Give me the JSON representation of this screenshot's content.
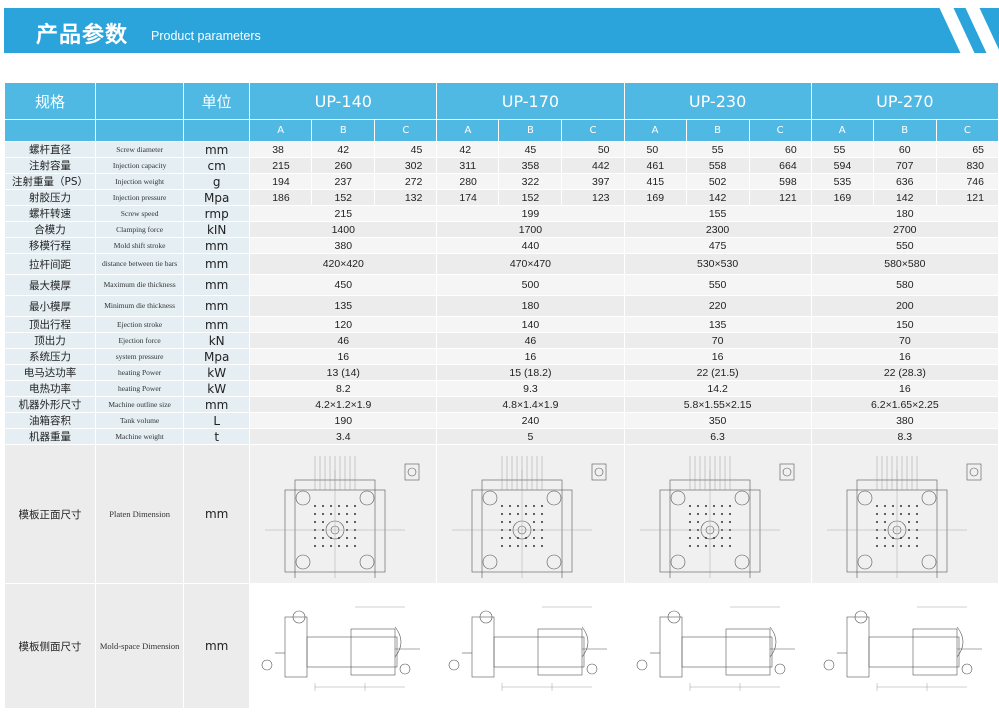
{
  "header": {
    "title_cn": "产品参数",
    "title_en": "Product parameters"
  },
  "columns": {
    "spec": "规格",
    "unit": "单位",
    "models": [
      "UP-140",
      "UP-170",
      "UP-230",
      "UP-270"
    ],
    "sub": [
      "A",
      "B",
      "C",
      "A",
      "B",
      "C",
      "A",
      "B",
      "C",
      "A",
      "B",
      "C"
    ]
  },
  "rows": [
    {
      "cn": "螺杆直径",
      "en": "Screw diameter",
      "unit": "mm",
      "vals": [
        "38",
        "42",
        "45",
        "42",
        "45",
        "50",
        "50",
        "55",
        "60",
        "55",
        "60",
        "65"
      ]
    },
    {
      "cn": "注射容量",
      "en": "Injection capacity",
      "unit": "cm",
      "vals": [
        "215",
        "260",
        "302",
        "311",
        "358",
        "442",
        "461",
        "558",
        "664",
        "594",
        "707",
        "830"
      ]
    },
    {
      "cn": "注射重量（PS）",
      "en": "Injection weight",
      "unit": "g",
      "vals": [
        "194",
        "237",
        "272",
        "280",
        "322",
        "397",
        "415",
        "502",
        "598",
        "535",
        "636",
        "746"
      ]
    },
    {
      "cn": "射胶压力",
      "en": "Injection pressure",
      "unit": "Mpa",
      "vals": [
        "186",
        "152",
        "132",
        "174",
        "152",
        "123",
        "169",
        "142",
        "121",
        "169",
        "142",
        "121"
      ]
    }
  ],
  "merged_rows": [
    {
      "cn": "螺杆转速",
      "en": "Screw speed",
      "unit": "rmp",
      "vals": [
        "215",
        "199",
        "155",
        "180"
      ]
    },
    {
      "cn": "合模力",
      "en": "Clamping force",
      "unit": "kIN",
      "vals": [
        "1400",
        "1700",
        "2300",
        "2700"
      ]
    },
    {
      "cn": "移模行程",
      "en": "Mold shift stroke",
      "unit": "mm",
      "vals": [
        "380",
        "440",
        "475",
        "550"
      ]
    },
    {
      "cn": "拉杆间距",
      "en": "distance between tie bars",
      "unit": "mm",
      "vals": [
        "420×420",
        "470×470",
        "530×530",
        "580×580"
      ],
      "tall": true
    },
    {
      "cn": "最大模厚",
      "en": "Maximum die thickness",
      "unit": "mm",
      "vals": [
        "450",
        "500",
        "550",
        "580"
      ],
      "tall": true
    },
    {
      "cn": "最小模厚",
      "en": "Minimum die thickness",
      "unit": "mm",
      "vals": [
        "135",
        "180",
        "220",
        "200"
      ],
      "tall": true
    },
    {
      "cn": "顶出行程",
      "en": "Ejection stroke",
      "unit": "mm",
      "vals": [
        "120",
        "140",
        "135",
        "150"
      ]
    },
    {
      "cn": "顶出力",
      "en": "Ejection force",
      "unit": "kN",
      "vals": [
        "46",
        "46",
        "70",
        "70"
      ]
    },
    {
      "cn": "系统压力",
      "en": "system pressure",
      "unit": "Mpa",
      "vals": [
        "16",
        "16",
        "16",
        "16"
      ]
    },
    {
      "cn": "电马达功率",
      "en": "heating Power",
      "unit": "kW",
      "vals": [
        "13 (14)",
        "15 (18.2)",
        "22 (21.5)",
        "22 (28.3)"
      ]
    },
    {
      "cn": "电热功率",
      "en": "heating Power",
      "unit": "kW",
      "vals": [
        "8.2",
        "9.3",
        "14.2",
        "16"
      ]
    },
    {
      "cn": "机器外形尺寸",
      "en": "Machine outline size",
      "unit": "mm",
      "vals": [
        "4.2×1.2×1.9",
        "4.8×1.4×1.9",
        "5.8×1.55×2.15",
        "6.2×1.65×2.25"
      ]
    },
    {
      "cn": "油箱容积",
      "en": "Tank volume",
      "unit": "L",
      "vals": [
        "190",
        "240",
        "350",
        "380"
      ]
    },
    {
      "cn": "机器重量",
      "en": "Machine weight",
      "unit": "t",
      "vals": [
        "3.4",
        "5",
        "6.3",
        "8.3"
      ]
    }
  ],
  "drawings": {
    "platen": {
      "cn": "模板正面尺寸",
      "en": "Platen Dimension",
      "unit": "mm"
    },
    "side": {
      "cn": "模板侧面尺寸",
      "en": "Mold-space Dimension",
      "unit": "mm"
    }
  }
}
